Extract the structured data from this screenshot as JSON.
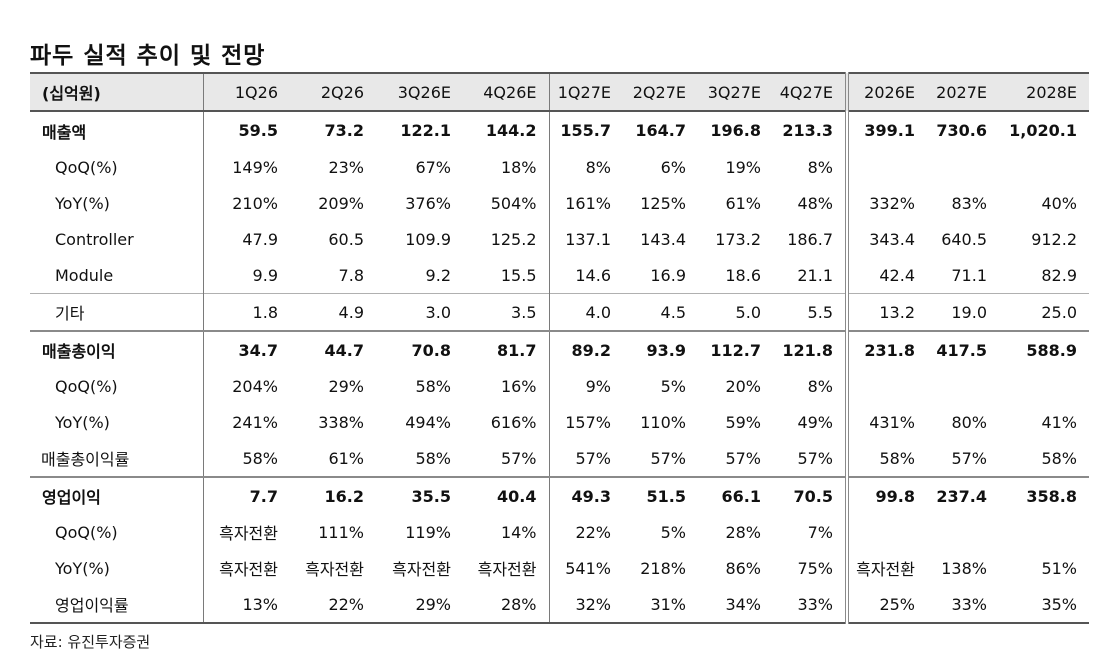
{
  "title": "파두 실적 추이 및 전망",
  "unit_label": "(십억원)",
  "columns": [
    "1Q26",
    "2Q26",
    "3Q26E",
    "4Q26E",
    "1Q27E",
    "2Q27E",
    "3Q27E",
    "4Q27E",
    "2026E",
    "2027E",
    "2028E"
  ],
  "rows": [
    {
      "label": "매출액",
      "values": [
        "59.5",
        "73.2",
        "122.1",
        "144.2",
        "155.7",
        "164.7",
        "196.8",
        "213.3",
        "399.1",
        "730.6",
        "1,020.1"
      ]
    },
    {
      "label": "QoQ(%)",
      "values": [
        "149%",
        "23%",
        "67%",
        "18%",
        "8%",
        "6%",
        "19%",
        "8%",
        "",
        "",
        ""
      ]
    },
    {
      "label": "YoY(%)",
      "values": [
        "210%",
        "209%",
        "376%",
        "504%",
        "161%",
        "125%",
        "61%",
        "48%",
        "332%",
        "83%",
        "40%"
      ]
    },
    {
      "label": "Controller",
      "values": [
        "47.9",
        "60.5",
        "109.9",
        "125.2",
        "137.1",
        "143.4",
        "173.2",
        "186.7",
        "343.4",
        "640.5",
        "912.2"
      ]
    },
    {
      "label": "Module",
      "values": [
        "9.9",
        "7.8",
        "9.2",
        "15.5",
        "14.6",
        "16.9",
        "18.6",
        "21.1",
        "42.4",
        "71.1",
        "82.9"
      ]
    },
    {
      "label": "기타",
      "values": [
        "1.8",
        "4.9",
        "3.0",
        "3.5",
        "4.0",
        "4.5",
        "5.0",
        "5.5",
        "13.2",
        "19.0",
        "25.0"
      ]
    },
    {
      "label": "매출총이익",
      "values": [
        "34.7",
        "44.7",
        "70.8",
        "81.7",
        "89.2",
        "93.9",
        "112.7",
        "121.8",
        "231.8",
        "417.5",
        "588.9"
      ]
    },
    {
      "label": "QoQ(%)",
      "values": [
        "204%",
        "29%",
        "58%",
        "16%",
        "9%",
        "5%",
        "20%",
        "8%",
        "",
        "",
        ""
      ]
    },
    {
      "label": "YoY(%)",
      "values": [
        "241%",
        "338%",
        "494%",
        "616%",
        "157%",
        "110%",
        "59%",
        "49%",
        "431%",
        "80%",
        "41%"
      ]
    },
    {
      "label": "매출총이익률",
      "values": [
        "58%",
        "61%",
        "58%",
        "57%",
        "57%",
        "57%",
        "57%",
        "57%",
        "58%",
        "57%",
        "58%"
      ]
    },
    {
      "label": "영업이익",
      "values": [
        "7.7",
        "16.2",
        "35.5",
        "40.4",
        "49.3",
        "51.5",
        "66.1",
        "70.5",
        "99.8",
        "237.4",
        "358.8"
      ]
    },
    {
      "label": "QoQ(%)",
      "values": [
        "흑자전환",
        "111%",
        "119%",
        "14%",
        "22%",
        "5%",
        "28%",
        "7%",
        "",
        "",
        ""
      ]
    },
    {
      "label": "YoY(%)",
      "values": [
        "흑자전환",
        "흑자전환",
        "흑자전환",
        "흑자전환",
        "541%",
        "218%",
        "86%",
        "75%",
        "흑자전환",
        "138%",
        "51%"
      ]
    },
    {
      "label": "영업이익률",
      "values": [
        "13%",
        "22%",
        "29%",
        "28%",
        "32%",
        "31%",
        "34%",
        "33%",
        "25%",
        "33%",
        "35%"
      ]
    }
  ],
  "source": "자료: 유진투자증권"
}
